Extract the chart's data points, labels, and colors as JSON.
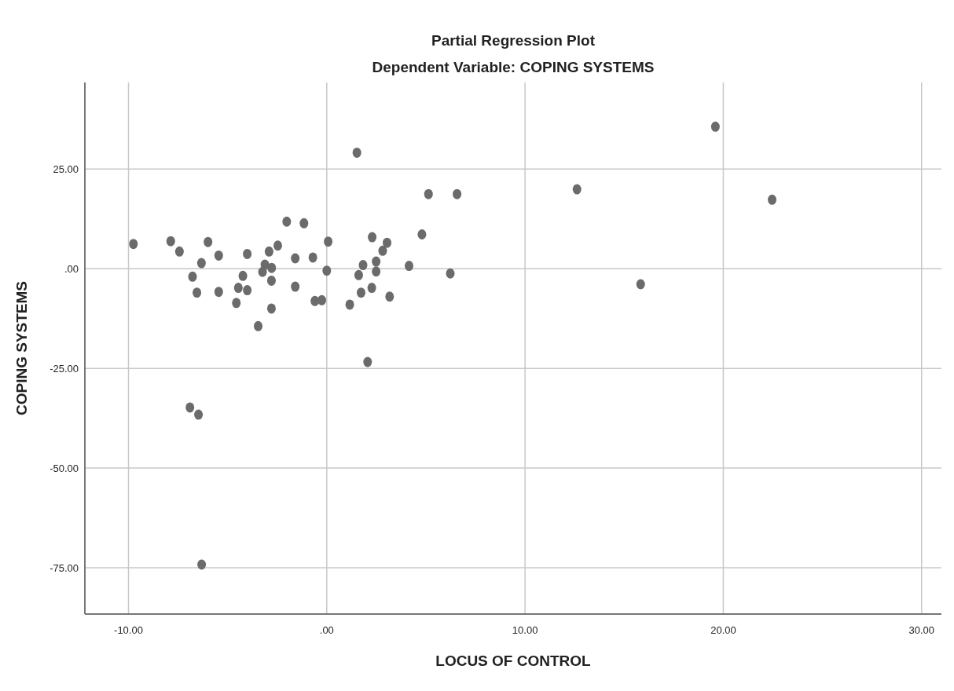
{
  "chart_data": {
    "type": "scatter",
    "title": "Partial Regression Plot",
    "subtitle": "Dependent Variable: COPING SYSTEMS",
    "xlabel": "LOCUS OF CONTROL",
    "ylabel": "COPING SYSTEMS",
    "xlim": [
      -12.2,
      31
    ],
    "ylim": [
      -86.6,
      46.7
    ],
    "xticks": [
      {
        "value": -10,
        "label": "-10.00"
      },
      {
        "value": 0,
        "label": ".00"
      },
      {
        "value": 10,
        "label": "10.00"
      },
      {
        "value": 20,
        "label": "20.00"
      },
      {
        "value": 30,
        "label": "30.00"
      }
    ],
    "yticks": [
      {
        "value": -75,
        "label": "-75.00"
      },
      {
        "value": -50,
        "label": "-50.00"
      },
      {
        "value": -25,
        "label": "-25.00"
      },
      {
        "value": 0,
        "label": ".00"
      },
      {
        "value": 25,
        "label": "25.00"
      }
    ],
    "grid": true,
    "marker": "circle",
    "series": [
      {
        "color": "#6b6b6b",
        "x": [
          -9.75,
          -7.87,
          -7.43,
          -5.99,
          -6.32,
          -5.45,
          -6.77,
          -6.55,
          -5.45,
          -4.01,
          -4.23,
          -4.46,
          -4.01,
          -4.56,
          -2.91,
          -2.47,
          -3.12,
          -3.24,
          -2.78,
          -2.79,
          -2.79,
          -3.46,
          -2.02,
          -1.15,
          -1.59,
          -1.59,
          -0.7,
          -0.6,
          -0.25,
          0.07,
          0.0,
          1.16,
          1.61,
          1.83,
          1.73,
          2.29,
          2.27,
          1.52,
          5.13,
          6.57,
          4.8,
          3.04,
          2.82,
          2.49,
          2.49,
          3.17,
          4.15,
          6.23,
          2.06,
          12.62,
          19.6,
          22.46,
          15.83,
          -6.9,
          -6.47,
          -6.31
        ],
        "values": [
          6.2,
          6.9,
          4.3,
          6.7,
          1.4,
          3.3,
          -2.0,
          -6.0,
          -5.8,
          3.7,
          -1.8,
          -4.8,
          -5.4,
          -8.6,
          4.3,
          5.8,
          1.0,
          -0.8,
          0.2,
          -3.0,
          -10.0,
          -14.4,
          11.8,
          11.4,
          2.6,
          -4.5,
          2.8,
          -8.1,
          -7.9,
          6.8,
          -0.5,
          -9.0,
          -1.6,
          0.9,
          -6.0,
          7.9,
          -4.8,
          29.1,
          18.7,
          18.7,
          8.6,
          6.5,
          4.5,
          1.8,
          -0.7,
          -7.0,
          0.7,
          -1.2,
          -23.4,
          19.9,
          35.6,
          17.3,
          -3.9,
          -34.8,
          -36.6,
          -74.2
        ]
      }
    ]
  }
}
